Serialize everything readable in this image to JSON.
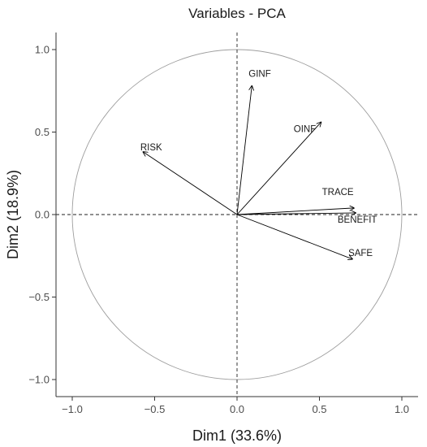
{
  "chart_data": {
    "type": "scatter",
    "title": "Variables - PCA",
    "xlabel": "Dim1 (33.6%)",
    "ylabel": "Dim2 (18.9%)",
    "xlim": [
      -1.1,
      1.1
    ],
    "ylim": [
      -1.1,
      1.1
    ],
    "x_ticks": [
      -1.0,
      -0.5,
      0.0,
      0.5,
      1.0
    ],
    "y_ticks": [
      -1.0,
      -0.5,
      0.0,
      0.5,
      1.0
    ],
    "x_tick_labels": [
      "−1.0",
      "−0.5",
      "0.0",
      "0.5",
      "1.0"
    ],
    "y_tick_labels": [
      "−1.0",
      "−0.5",
      "0.0",
      "0.5",
      "1.0"
    ],
    "circle_radius": 1.0,
    "grid": false,
    "reference_lines": [
      0,
      0
    ],
    "variables": [
      {
        "name": "GINF",
        "x": 0.09,
        "y": 0.78
      },
      {
        "name": "OINF",
        "x": 0.51,
        "y": 0.56
      },
      {
        "name": "RISK",
        "x": -0.57,
        "y": 0.38
      },
      {
        "name": "TRACE",
        "x": 0.71,
        "y": 0.04
      },
      {
        "name": "BENEFIT",
        "x": 0.72,
        "y": 0.01
      },
      {
        "name": "SAFE",
        "x": 0.7,
        "y": -0.27
      }
    ],
    "colors": {
      "arrow": "#000000",
      "circle": "#9e9e9e",
      "axis": "#333333"
    }
  }
}
